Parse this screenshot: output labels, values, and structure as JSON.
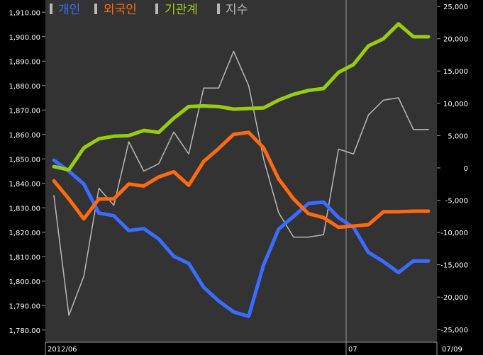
{
  "chart_data": {
    "type": "line",
    "legend": [
      {
        "name": "개인",
        "color": "#3a6cff"
      },
      {
        "name": "외국인",
        "color": "#ff6a10"
      },
      {
        "name": "기관계",
        "color": "#99cc11"
      },
      {
        "name": "지수",
        "color": "#b8b8b8"
      }
    ],
    "x_labels": [
      "2012/06",
      "07",
      "07/09"
    ],
    "left_axis": {
      "ylim": [
        1775,
        1915
      ],
      "ticks": [
        "1,780.00",
        "1,790.00",
        "1,800.00",
        "1,810.00",
        "1,820.00",
        "1,830.00",
        "1,840.00",
        "1,850.00",
        "1,860.00",
        "1,870.00",
        "1,880.00",
        "1,890.00",
        "1,900.00",
        "1,910.00"
      ]
    },
    "right_axis": {
      "ylim": [
        -27000,
        26000
      ],
      "ticks": [
        "25,000",
        "20,000",
        "15,000",
        "10,000",
        "5,000",
        "0",
        "-5,000",
        "-10,000",
        "-15,000",
        "-20,000",
        "-25,000"
      ]
    },
    "grid": false,
    "series": [
      {
        "name": "지수",
        "axis": "left",
        "color": "#b8b8b8",
        "values": [
          1835,
          1786,
          1802,
          1838,
          1831,
          1857,
          1845,
          1848,
          1861,
          1852,
          1879,
          1879,
          1894,
          1880,
          1850,
          1828,
          1818,
          1818,
          1819,
          1854,
          1852,
          1868,
          1874,
          1875,
          1862,
          1862
        ]
      },
      {
        "name": "개인",
        "axis": "right",
        "color": "#3a6cff",
        "values": [
          1200,
          -500,
          -2500,
          -7000,
          -7400,
          -9700,
          -9400,
          -11000,
          -13700,
          -14800,
          -18500,
          -20600,
          -22300,
          -23000,
          -15000,
          -9500,
          -7500,
          -5500,
          -5300,
          -7700,
          -9200,
          -13100,
          -14500,
          -16200,
          -14400,
          -14400
        ]
      },
      {
        "name": "외국인",
        "axis": "right",
        "color": "#ff6a10",
        "values": [
          -2000,
          -4800,
          -7900,
          -4800,
          -4800,
          -2500,
          -2800,
          -1400,
          -600,
          -2700,
          1000,
          3000,
          5200,
          5500,
          3100,
          -1700,
          -4800,
          -7100,
          -7700,
          -9200,
          -9000,
          -8800,
          -6800,
          -6800,
          -6700,
          -6700
        ]
      },
      {
        "name": "기관계",
        "axis": "right",
        "color": "#99cc11",
        "values": [
          200,
          -300,
          3100,
          4500,
          4900,
          5000,
          5800,
          5500,
          7700,
          9500,
          9600,
          9500,
          9100,
          9200,
          9300,
          10500,
          11400,
          12000,
          12300,
          14800,
          16000,
          18900,
          20000,
          22300,
          20300,
          20300
        ]
      }
    ]
  }
}
